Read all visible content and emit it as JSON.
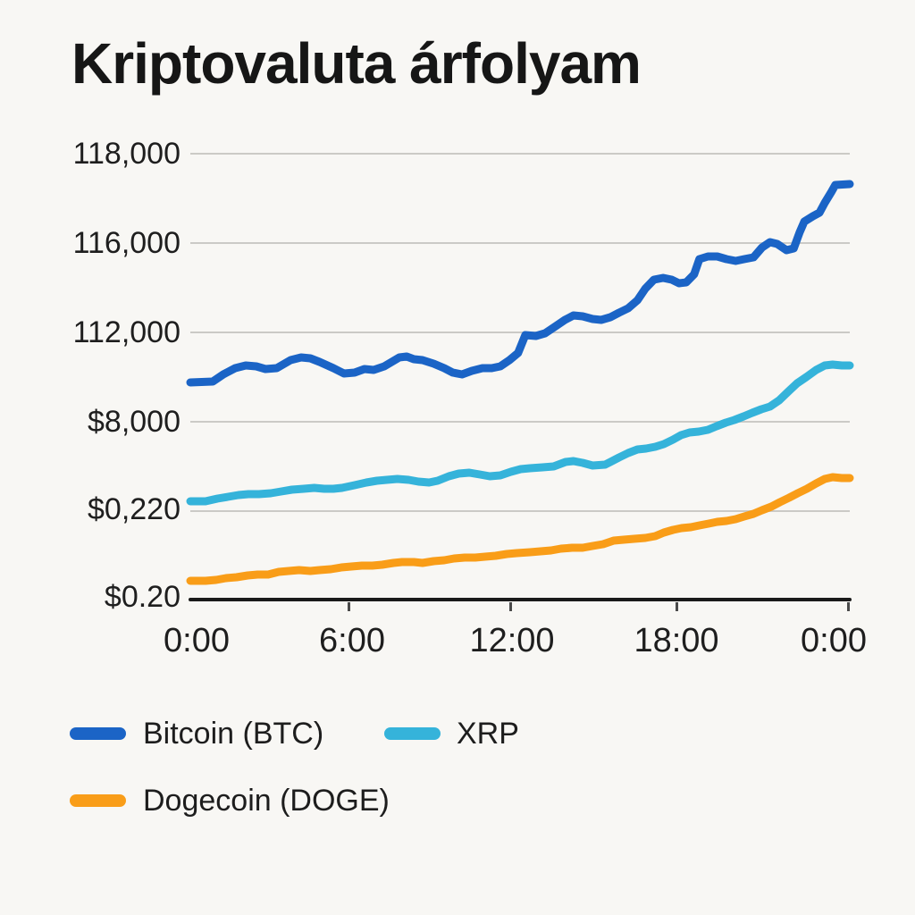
{
  "title": "Kriptovaluta árfolyam",
  "colors": {
    "background": "#F8F7F4",
    "gridline": "#CBCAC6",
    "axis": "#1A1A1A",
    "text": "#1A1A1A",
    "bitcoin": "#1B64C6",
    "xrp": "#35B3DA",
    "dogecoin": "#F99D18"
  },
  "chart_data": {
    "type": "line",
    "title": "Kriptovaluta árfolyam",
    "xlabel": "",
    "ylabel": "",
    "grid": true,
    "legend_position": "bottom-left",
    "x_tick_labels": [
      "0:00",
      "6:00",
      "12:00",
      "18:00",
      "0:00"
    ],
    "y_tick_labels_top_to_bottom": [
      "118,000",
      "116,000",
      "112,000",
      "$8,000",
      "$0,220",
      "$0.20"
    ],
    "note": "x of each point = percent across the 24h axis (0:00 to 0:00); y = percent of plot height above the baseline axis, where 100 = the top '118,000' gridline. Printed y-axis tick labels are mixed-scale as shown.",
    "series": [
      {
        "id": "bitcoin-btc",
        "name": "Bitcoin (BTC)",
        "color": "#1B64C6",
        "points": [
          [
            0,
            48.8
          ],
          [
            3.4,
            49
          ],
          [
            5,
            50.6
          ],
          [
            6.8,
            52
          ],
          [
            8.4,
            52.6
          ],
          [
            10,
            52.4
          ],
          [
            11.4,
            51.8
          ],
          [
            13.1,
            52
          ],
          [
            15.2,
            53.8
          ],
          [
            16.8,
            54.4
          ],
          [
            18.2,
            54.2
          ],
          [
            19.6,
            53.4
          ],
          [
            21.7,
            52
          ],
          [
            23.3,
            50.8
          ],
          [
            24.9,
            51
          ],
          [
            26.4,
            51.8
          ],
          [
            27.8,
            51.6
          ],
          [
            29.4,
            52.4
          ],
          [
            31.7,
            54.4
          ],
          [
            32.8,
            54.6
          ],
          [
            33.9,
            54
          ],
          [
            35.2,
            53.8
          ],
          [
            36.9,
            53
          ],
          [
            38.5,
            52
          ],
          [
            39.8,
            51
          ],
          [
            41.2,
            50.6
          ],
          [
            42.7,
            51.4
          ],
          [
            44.3,
            52
          ],
          [
            45.7,
            52
          ],
          [
            47,
            52.4
          ],
          [
            48.4,
            53.8
          ],
          [
            49.7,
            55.4
          ],
          [
            50.8,
            59.4
          ],
          [
            52.4,
            59.2
          ],
          [
            53.8,
            59.8
          ],
          [
            55.4,
            61.4
          ],
          [
            56.8,
            62.8
          ],
          [
            58.1,
            63.8
          ],
          [
            59.5,
            63.6
          ],
          [
            61,
            63
          ],
          [
            62.3,
            62.8
          ],
          [
            63.7,
            63.4
          ],
          [
            65,
            64.4
          ],
          [
            66.4,
            65.4
          ],
          [
            67.8,
            67.2
          ],
          [
            69,
            69.8
          ],
          [
            70.3,
            71.8
          ],
          [
            71.7,
            72.2
          ],
          [
            73,
            71.8
          ],
          [
            74.1,
            71
          ],
          [
            75.2,
            71.2
          ],
          [
            76.4,
            73
          ],
          [
            77.2,
            76.4
          ],
          [
            78.5,
            77
          ],
          [
            79.9,
            77
          ],
          [
            81.3,
            76.4
          ],
          [
            82.7,
            76
          ],
          [
            84,
            76.4
          ],
          [
            85.4,
            76.8
          ],
          [
            86.7,
            79
          ],
          [
            87.9,
            80.2
          ],
          [
            89,
            79.8
          ],
          [
            90.4,
            78.4
          ],
          [
            91.5,
            78.8
          ],
          [
            92.4,
            82.4
          ],
          [
            93.1,
            84.8
          ],
          [
            94.4,
            86
          ],
          [
            95.4,
            86.8
          ],
          [
            96.2,
            89
          ],
          [
            97.2,
            91.4
          ],
          [
            97.8,
            93
          ],
          [
            100,
            93.2
          ]
        ]
      },
      {
        "id": "xrp",
        "name": "XRP",
        "color": "#35B3DA",
        "points": [
          [
            0,
            22.2
          ],
          [
            2.3,
            22.2
          ],
          [
            4.1,
            22.8
          ],
          [
            5.7,
            23.2
          ],
          [
            7.3,
            23.6
          ],
          [
            8.8,
            23.8
          ],
          [
            10.4,
            23.8
          ],
          [
            12.2,
            24
          ],
          [
            13.8,
            24.4
          ],
          [
            15.4,
            24.8
          ],
          [
            17.2,
            25
          ],
          [
            18.8,
            25.2
          ],
          [
            20.3,
            25
          ],
          [
            21.7,
            25
          ],
          [
            23,
            25.2
          ],
          [
            24.9,
            25.8
          ],
          [
            26.7,
            26.4
          ],
          [
            28.3,
            26.8
          ],
          [
            29.8,
            27
          ],
          [
            31.4,
            27.2
          ],
          [
            33.1,
            27
          ],
          [
            34.6,
            26.6
          ],
          [
            36.2,
            26.4
          ],
          [
            37.5,
            26.8
          ],
          [
            39.2,
            27.8
          ],
          [
            40.7,
            28.4
          ],
          [
            42.3,
            28.6
          ],
          [
            43.9,
            28.2
          ],
          [
            45.4,
            27.8
          ],
          [
            47,
            28
          ],
          [
            48.6,
            28.8
          ],
          [
            50.1,
            29.4
          ],
          [
            51.5,
            29.6
          ],
          [
            53.4,
            29.8
          ],
          [
            55.1,
            30
          ],
          [
            56.9,
            31
          ],
          [
            58.1,
            31.2
          ],
          [
            59.5,
            30.8
          ],
          [
            61,
            30.2
          ],
          [
            62.9,
            30.4
          ],
          [
            63.7,
            31
          ],
          [
            65,
            32
          ],
          [
            66.4,
            33
          ],
          [
            67.8,
            33.8
          ],
          [
            69.1,
            34
          ],
          [
            70.5,
            34.4
          ],
          [
            71.8,
            35
          ],
          [
            73.2,
            36
          ],
          [
            74.4,
            37
          ],
          [
            75.7,
            37.6
          ],
          [
            77.1,
            37.8
          ],
          [
            78.5,
            38.2
          ],
          [
            79.8,
            39
          ],
          [
            81.2,
            39.8
          ],
          [
            82.5,
            40.4
          ],
          [
            83.9,
            41.2
          ],
          [
            85.2,
            42
          ],
          [
            86.6,
            42.8
          ],
          [
            87.9,
            43.4
          ],
          [
            89.3,
            44.8
          ],
          [
            90.7,
            46.8
          ],
          [
            92,
            48.6
          ],
          [
            93.4,
            50
          ],
          [
            94.9,
            51.6
          ],
          [
            96.2,
            52.6
          ],
          [
            97.4,
            52.8
          ],
          [
            98.8,
            52.6
          ],
          [
            100,
            52.6
          ]
        ]
      },
      {
        "id": "dogecoin-doge",
        "name": "Dogecoin (DOGE)",
        "color": "#F99D18",
        "points": [
          [
            0,
            4.4
          ],
          [
            2.3,
            4.4
          ],
          [
            3.9,
            4.6
          ],
          [
            5.4,
            5
          ],
          [
            7,
            5.2
          ],
          [
            8.7,
            5.6
          ],
          [
            10.2,
            5.8
          ],
          [
            11.8,
            5.8
          ],
          [
            13.4,
            6.4
          ],
          [
            14.9,
            6.6
          ],
          [
            16.5,
            6.8
          ],
          [
            18.2,
            6.6
          ],
          [
            19.6,
            6.8
          ],
          [
            21.3,
            7
          ],
          [
            22.9,
            7.4
          ],
          [
            24.4,
            7.6
          ],
          [
            26,
            7.8
          ],
          [
            27.6,
            7.8
          ],
          [
            29.1,
            8
          ],
          [
            30.8,
            8.4
          ],
          [
            32.1,
            8.6
          ],
          [
            33.9,
            8.6
          ],
          [
            35.2,
            8.4
          ],
          [
            36.9,
            8.8
          ],
          [
            38.5,
            9
          ],
          [
            40,
            9.4
          ],
          [
            41.6,
            9.6
          ],
          [
            43.2,
            9.6
          ],
          [
            44.7,
            9.8
          ],
          [
            46.3,
            10
          ],
          [
            48,
            10.4
          ],
          [
            49.5,
            10.6
          ],
          [
            51.5,
            10.8
          ],
          [
            53.1,
            11
          ],
          [
            54.7,
            11.2
          ],
          [
            56.2,
            11.6
          ],
          [
            57.9,
            11.8
          ],
          [
            59.5,
            11.8
          ],
          [
            61,
            12.2
          ],
          [
            62.6,
            12.6
          ],
          [
            64.2,
            13.4
          ],
          [
            65.7,
            13.6
          ],
          [
            67.3,
            13.8
          ],
          [
            69,
            14
          ],
          [
            70.5,
            14.4
          ],
          [
            71.8,
            15.2
          ],
          [
            73.2,
            15.8
          ],
          [
            74.5,
            16.2
          ],
          [
            75.9,
            16.4
          ],
          [
            77.2,
            16.8
          ],
          [
            78.6,
            17.2
          ],
          [
            79.9,
            17.6
          ],
          [
            81.3,
            17.8
          ],
          [
            82.7,
            18.2
          ],
          [
            84,
            18.8
          ],
          [
            85.4,
            19.4
          ],
          [
            86.7,
            20.2
          ],
          [
            88.1,
            21
          ],
          [
            89.4,
            22
          ],
          [
            90.8,
            23
          ],
          [
            92.1,
            24
          ],
          [
            93.5,
            25
          ],
          [
            94.9,
            26.2
          ],
          [
            96.2,
            27.2
          ],
          [
            97.4,
            27.6
          ],
          [
            98.8,
            27.4
          ],
          [
            100,
            27.4
          ]
        ]
      }
    ]
  }
}
